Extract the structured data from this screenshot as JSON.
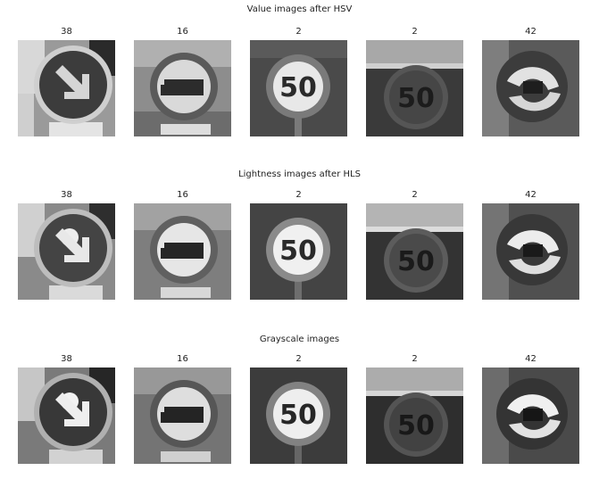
{
  "figure": {
    "rows": [
      {
        "title": "Value images after HSV",
        "panels": [
          {
            "label": "38",
            "sign": "keep-right-sign-icon"
          },
          {
            "label": "16",
            "sign": "no-trucks-sign-icon"
          },
          {
            "label": "2",
            "sign": "speed-limit-50-sign-icon"
          },
          {
            "label": "2",
            "sign": "speed-limit-50-sign-icon"
          },
          {
            "label": "42",
            "sign": "end-of-no-passing-trucks-sign-icon"
          }
        ]
      },
      {
        "title": "Lightness images after HLS",
        "panels": [
          {
            "label": "38",
            "sign": "keep-right-sign-icon"
          },
          {
            "label": "16",
            "sign": "no-trucks-sign-icon"
          },
          {
            "label": "2",
            "sign": "speed-limit-50-sign-icon"
          },
          {
            "label": "2",
            "sign": "speed-limit-50-sign-icon"
          },
          {
            "label": "42",
            "sign": "end-of-no-passing-trucks-sign-icon"
          }
        ]
      },
      {
        "title": "Grayscale images",
        "panels": [
          {
            "label": "38",
            "sign": "keep-right-sign-icon"
          },
          {
            "label": "16",
            "sign": "no-trucks-sign-icon"
          },
          {
            "label": "2",
            "sign": "speed-limit-50-sign-icon"
          },
          {
            "label": "2",
            "sign": "speed-limit-50-sign-icon"
          },
          {
            "label": "42",
            "sign": "end-of-no-passing-trucks-sign-icon"
          }
        ]
      }
    ],
    "sign_text": {
      "speed_limit": "50"
    }
  }
}
